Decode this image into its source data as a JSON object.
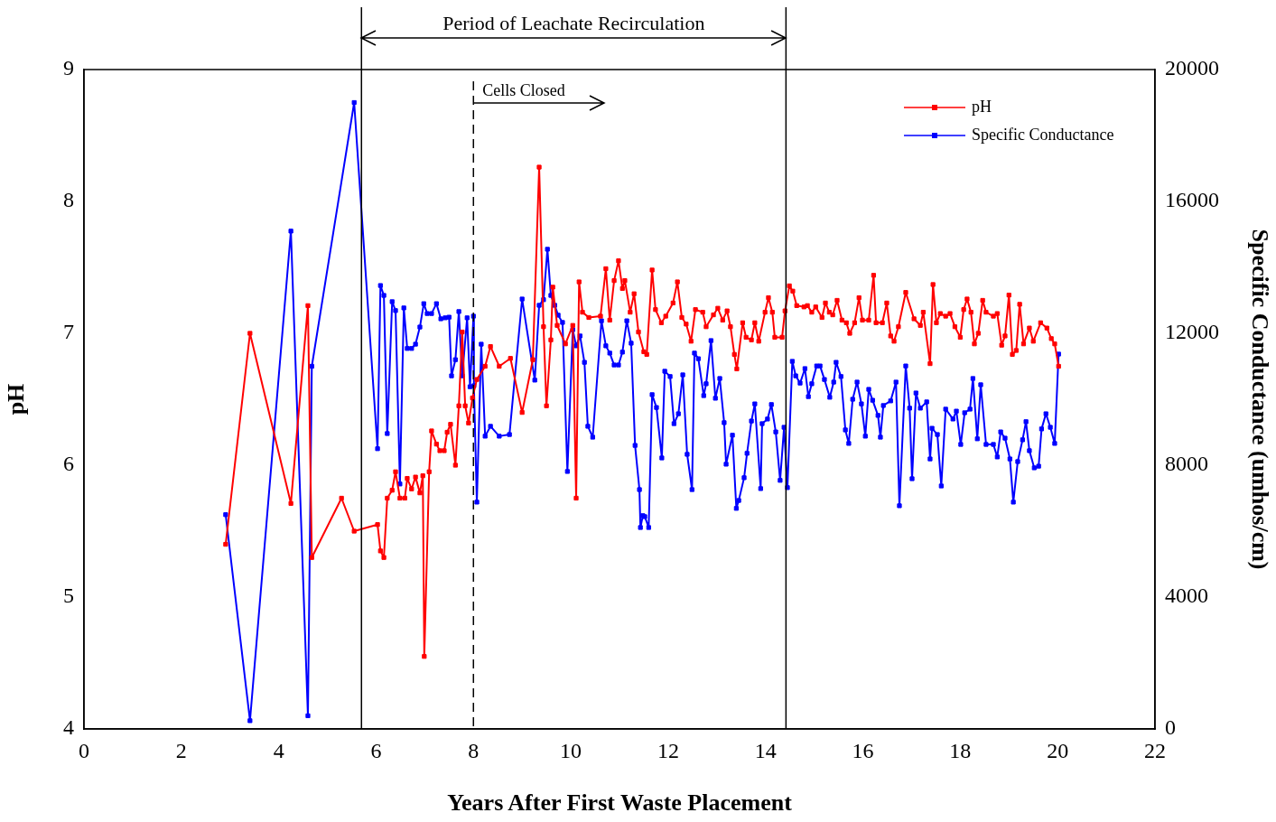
{
  "chart_data": {
    "type": "line",
    "xlabel": "Years After First Waste Placement",
    "ylabel": "pH",
    "y2label": "Specific Conductance (umhos/cm)",
    "xlim": [
      0,
      22
    ],
    "xticks": [
      0,
      2,
      4,
      6,
      8,
      10,
      12,
      14,
      16,
      18,
      20,
      22
    ],
    "ylim": [
      4,
      9
    ],
    "yticks": [
      4,
      5,
      6,
      7,
      8,
      9
    ],
    "y2lim": [
      0,
      20000
    ],
    "y2ticks": [
      0,
      4000,
      8000,
      12000,
      16000,
      20000
    ],
    "grid": false,
    "legend": "top right",
    "marker": "square",
    "line_style": "solid",
    "annotations": [
      "Period of Leachate Recirculation"
    ],
    "ref_lines": [
      {
        "axis": "x",
        "value": 5.7,
        "line_style": "solid",
        "color": "#000000"
      },
      {
        "axis": "x",
        "value": 14.42,
        "line_style": "solid",
        "color": "#000000"
      },
      {
        "axis": "x",
        "value": 8,
        "label": "Cells Closed",
        "line_style": "dashed",
        "color": "#000000"
      }
    ],
    "series": [
      {
        "name": "pH",
        "color": "#ff0000",
        "x": [
          2.91,
          3.41,
          4.25,
          4.6,
          4.68,
          5.29,
          5.55,
          6.03,
          6.09,
          6.16,
          6.23,
          6.33,
          6.4,
          6.49,
          6.59,
          6.64,
          6.73,
          6.81,
          6.9,
          6.96,
          6.99,
          7.09,
          7.14,
          7.24,
          7.31,
          7.4,
          7.46,
          7.53,
          7.63,
          7.7,
          7.77,
          7.83,
          7.9,
          7.98,
          8.07,
          8.24,
          8.35,
          8.53,
          8.76,
          9.0,
          9.22,
          9.35,
          9.44,
          9.5,
          9.59,
          9.63,
          9.72,
          9.89,
          10.04,
          10.11,
          10.17,
          10.24,
          10.37,
          10.61,
          10.72,
          10.8,
          10.89,
          10.98,
          11.06,
          11.11,
          11.22,
          11.3,
          11.39,
          11.5,
          11.56,
          11.67,
          11.74,
          11.86,
          11.95,
          12.1,
          12.19,
          12.28,
          12.37,
          12.47,
          12.56,
          12.71,
          12.78,
          12.93,
          13.02,
          13.12,
          13.21,
          13.28,
          13.36,
          13.41,
          13.53,
          13.6,
          13.71,
          13.78,
          13.86,
          13.99,
          14.06,
          14.14,
          14.19,
          14.34,
          14.4,
          14.49,
          14.56,
          14.64,
          14.79,
          14.86,
          14.95,
          15.03,
          15.16,
          15.23,
          15.31,
          15.38,
          15.47,
          15.57,
          15.66,
          15.73,
          15.83,
          15.92,
          15.99,
          16.12,
          16.22,
          16.27,
          16.4,
          16.49,
          16.57,
          16.64,
          16.73,
          16.88,
          17.05,
          17.18,
          17.24,
          17.38,
          17.44,
          17.51,
          17.59,
          17.7,
          17.79,
          17.89,
          18.0,
          18.07,
          18.14,
          18.22,
          18.29,
          18.37,
          18.46,
          18.53,
          18.68,
          18.76,
          18.85,
          18.92,
          19.0,
          19.07,
          19.15,
          19.22,
          19.3,
          19.42,
          19.5,
          19.65,
          19.78,
          19.87,
          19.94,
          20.02
        ],
        "values": [
          5.4,
          7.0,
          5.71,
          7.21,
          5.3,
          5.75,
          5.5,
          5.55,
          5.35,
          5.3,
          5.75,
          5.81,
          5.95,
          5.75,
          5.75,
          5.9,
          5.82,
          5.91,
          5.79,
          5.92,
          4.55,
          5.95,
          6.26,
          6.16,
          6.11,
          6.11,
          6.25,
          6.31,
          6.0,
          6.45,
          7.01,
          6.45,
          6.32,
          6.51,
          6.65,
          6.75,
          6.9,
          6.75,
          6.81,
          6.4,
          6.8,
          8.26,
          7.05,
          6.45,
          6.95,
          7.35,
          7.06,
          6.92,
          7.06,
          5.75,
          7.39,
          7.16,
          7.12,
          7.13,
          7.49,
          7.1,
          7.4,
          7.55,
          7.34,
          7.4,
          7.16,
          7.3,
          7.01,
          6.86,
          6.84,
          7.48,
          7.18,
          7.08,
          7.13,
          7.23,
          7.39,
          7.12,
          7.07,
          6.94,
          7.18,
          7.16,
          7.05,
          7.14,
          7.19,
          7.1,
          7.17,
          7.05,
          6.84,
          6.73,
          7.08,
          6.97,
          6.95,
          7.08,
          6.94,
          7.16,
          7.27,
          7.16,
          6.97,
          6.97,
          7.17,
          7.36,
          7.32,
          7.21,
          7.2,
          7.21,
          7.16,
          7.2,
          7.12,
          7.23,
          7.16,
          7.14,
          7.25,
          7.1,
          7.08,
          7.0,
          7.08,
          7.27,
          7.1,
          7.1,
          7.44,
          7.08,
          7.08,
          7.23,
          6.98,
          6.94,
          7.05,
          7.31,
          7.11,
          7.06,
          7.16,
          6.77,
          7.37,
          7.08,
          7.15,
          7.13,
          7.15,
          7.05,
          6.97,
          7.18,
          7.26,
          7.16,
          6.92,
          7.0,
          7.25,
          7.16,
          7.13,
          7.15,
          6.91,
          6.98,
          7.29,
          6.84,
          6.87,
          7.22,
          6.92,
          7.04,
          6.94,
          7.08,
          7.04,
          6.96,
          6.92,
          6.75
        ]
      },
      {
        "name": "Specific Conductance",
        "color": "#0000ff",
        "axis": "y2",
        "x": [
          2.91,
          3.41,
          4.25,
          4.6,
          4.68,
          5.55,
          6.03,
          6.09,
          6.16,
          6.23,
          6.33,
          6.4,
          6.49,
          6.57,
          6.64,
          6.73,
          6.81,
          6.9,
          6.98,
          7.05,
          7.14,
          7.24,
          7.33,
          7.42,
          7.5,
          7.55,
          7.63,
          7.7,
          7.77,
          7.87,
          7.93,
          8.0,
          8.01,
          8.07,
          8.16,
          8.24,
          8.35,
          8.53,
          8.74,
          9.0,
          9.26,
          9.35,
          9.44,
          9.52,
          9.59,
          9.67,
          9.74,
          9.83,
          9.93,
          10.04,
          10.11,
          10.19,
          10.28,
          10.35,
          10.45,
          10.63,
          10.72,
          10.8,
          10.89,
          10.98,
          11.06,
          11.15,
          11.24,
          11.32,
          11.41,
          11.43,
          11.48,
          11.52,
          11.6,
          11.67,
          11.76,
          11.87,
          11.93,
          12.04,
          12.12,
          12.21,
          12.3,
          12.39,
          12.49,
          12.54,
          12.62,
          12.73,
          12.78,
          12.88,
          12.97,
          13.06,
          13.15,
          13.19,
          13.32,
          13.4,
          13.45,
          13.56,
          13.62,
          13.71,
          13.78,
          13.9,
          13.93,
          14.04,
          14.12,
          14.21,
          14.3,
          14.38,
          14.45,
          14.55,
          14.62,
          14.71,
          14.81,
          14.88,
          14.95,
          15.05,
          15.12,
          15.21,
          15.32,
          15.4,
          15.45,
          15.55,
          15.64,
          15.71,
          15.79,
          15.88,
          15.97,
          16.05,
          16.12,
          16.2,
          16.31,
          16.36,
          16.42,
          16.57,
          16.68,
          16.75,
          16.88,
          16.96,
          17.01,
          17.09,
          17.18,
          17.31,
          17.38,
          17.42,
          17.53,
          17.61,
          17.7,
          17.85,
          17.92,
          18.01,
          18.09,
          18.2,
          18.26,
          18.35,
          18.42,
          18.53,
          18.68,
          18.76,
          18.83,
          18.92,
          19.02,
          19.09,
          19.18,
          19.28,
          19.35,
          19.42,
          19.52,
          19.61,
          19.67,
          19.76,
          19.85,
          19.94,
          20.02
        ],
        "values": [
          6500,
          250,
          15100,
          400,
          11000,
          19000,
          8500,
          13450,
          13150,
          8960,
          12960,
          12690,
          7430,
          12770,
          11540,
          11540,
          11670,
          12190,
          12900,
          12600,
          12600,
          12900,
          12440,
          12470,
          12490,
          10710,
          11200,
          12660,
          10710,
          12470,
          10380,
          12520,
          10410,
          6880,
          11670,
          8880,
          9180,
          8880,
          8930,
          13040,
          10580,
          12850,
          13020,
          14550,
          13150,
          12850,
          12550,
          12330,
          7810,
          12110,
          11620,
          11920,
          11120,
          9180,
          8850,
          12380,
          11620,
          11400,
          11040,
          11040,
          11430,
          12380,
          11700,
          8600,
          7260,
          6110,
          6470,
          6440,
          6110,
          10140,
          9750,
          8220,
          10850,
          10690,
          9260,
          9560,
          10740,
          8330,
          7260,
          11400,
          11230,
          10110,
          10470,
          11780,
          10030,
          10630,
          9290,
          8030,
          8910,
          6690,
          6930,
          7620,
          8360,
          9340,
          9860,
          7290,
          9260,
          9400,
          9840,
          9010,
          7540,
          9150,
          7320,
          11150,
          10710,
          10490,
          10930,
          10080,
          10470,
          11010,
          11010,
          10600,
          10060,
          10520,
          11120,
          10690,
          9070,
          8660,
          10000,
          10520,
          9860,
          8880,
          10300,
          9970,
          9510,
          8850,
          9810,
          9950,
          10520,
          6770,
          11010,
          9730,
          7590,
          10190,
          9730,
          9920,
          8190,
          9120,
          8930,
          7370,
          9700,
          9400,
          9640,
          8630,
          9590,
          9700,
          10630,
          8800,
          10440,
          8630,
          8630,
          8250,
          9010,
          8820,
          8190,
          6880,
          8110,
          8770,
          9320,
          8440,
          7920,
          7970,
          9100,
          9560,
          9150,
          8660,
          11370
        ]
      }
    ]
  }
}
